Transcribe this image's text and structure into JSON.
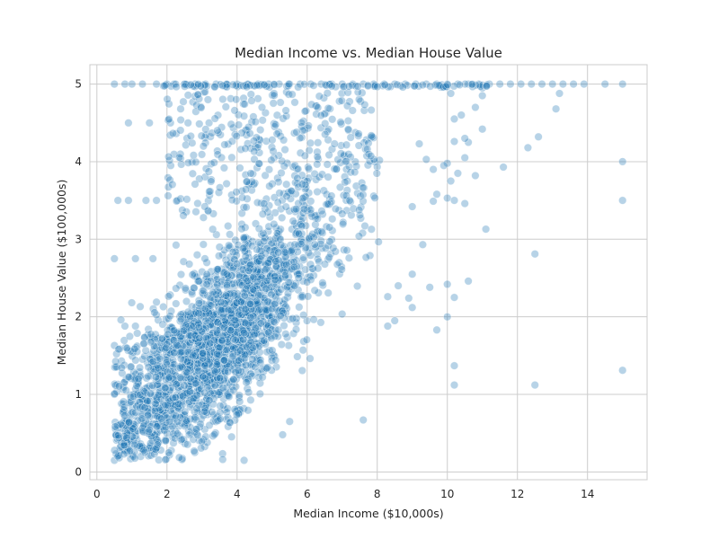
{
  "chart_data": {
    "type": "scatter",
    "title": "Median Income vs. Median House Value",
    "xlabel": "Median Income ($10,000s)",
    "ylabel": "Median House Value ($100,000s)",
    "xlim": [
      -0.2,
      15.7
    ],
    "ylim": [
      -0.1,
      5.25
    ],
    "xticks": [
      0,
      2,
      4,
      6,
      8,
      10,
      12,
      14
    ],
    "yticks": [
      0,
      1,
      2,
      3,
      4,
      5
    ],
    "grid": true,
    "point_color": "#1f77b4",
    "series": [
      {
        "points": [
          [
            0.5,
            5.0
          ],
          [
            0.8,
            5.0
          ],
          [
            1.0,
            5.0
          ],
          [
            1.3,
            5.0
          ],
          [
            1.7,
            5.0
          ],
          [
            2.0,
            5.0
          ],
          [
            2.2,
            5.0
          ],
          [
            2.5,
            5.0
          ],
          [
            2.8,
            5.0
          ],
          [
            3.1,
            5.0
          ],
          [
            3.4,
            5.0
          ],
          [
            3.7,
            5.0
          ],
          [
            4.0,
            5.0
          ],
          [
            4.3,
            5.0
          ],
          [
            4.6,
            5.0
          ],
          [
            4.9,
            5.0
          ],
          [
            5.2,
            5.0
          ],
          [
            5.5,
            5.0
          ],
          [
            5.8,
            5.0
          ],
          [
            6.1,
            5.0
          ],
          [
            6.4,
            5.0
          ],
          [
            6.7,
            5.0
          ],
          [
            7.0,
            5.0
          ],
          [
            7.3,
            5.0
          ],
          [
            7.6,
            5.0
          ],
          [
            7.9,
            5.0
          ],
          [
            8.2,
            5.0
          ],
          [
            8.5,
            5.0
          ],
          [
            8.8,
            5.0
          ],
          [
            9.1,
            5.0
          ],
          [
            9.4,
            5.0
          ],
          [
            9.7,
            5.0
          ],
          [
            10.0,
            5.0
          ],
          [
            10.3,
            5.0
          ],
          [
            10.6,
            5.0
          ],
          [
            10.9,
            5.0
          ],
          [
            11.2,
            5.0
          ],
          [
            11.5,
            5.0
          ],
          [
            11.8,
            5.0
          ],
          [
            12.1,
            5.0
          ],
          [
            12.4,
            5.0
          ],
          [
            12.7,
            5.0
          ],
          [
            13.0,
            5.0
          ],
          [
            13.3,
            5.0
          ],
          [
            13.6,
            5.0
          ],
          [
            13.9,
            5.0
          ],
          [
            14.5,
            5.0
          ],
          [
            15.0,
            5.0
          ],
          [
            0.9,
            4.5
          ],
          [
            1.5,
            4.5
          ],
          [
            2.1,
            4.5
          ],
          [
            2.6,
            4.5
          ],
          [
            3.2,
            4.5
          ],
          [
            0.6,
            3.5
          ],
          [
            0.9,
            3.5
          ],
          [
            1.4,
            3.5
          ],
          [
            1.7,
            3.5
          ],
          [
            2.3,
            3.5
          ],
          [
            0.5,
            2.75
          ],
          [
            1.1,
            2.75
          ],
          [
            1.6,
            2.75
          ],
          [
            0.5,
            1.63
          ],
          [
            0.8,
            1.88
          ],
          [
            1.1,
            1.88
          ],
          [
            0.6,
            1.13
          ],
          [
            0.5,
            1.0
          ],
          [
            0.7,
            0.88
          ],
          [
            11.0,
            4.95
          ],
          [
            11.0,
            4.85
          ],
          [
            10.8,
            4.7
          ],
          [
            10.1,
            4.88
          ],
          [
            10.2,
            4.55
          ],
          [
            10.4,
            4.6
          ],
          [
            10.6,
            4.25
          ],
          [
            10.2,
            4.26
          ],
          [
            10.5,
            4.3
          ],
          [
            11.0,
            4.42
          ],
          [
            10.5,
            4.05
          ],
          [
            10.0,
            3.98
          ],
          [
            10.3,
            3.85
          ],
          [
            10.1,
            3.75
          ],
          [
            10.8,
            3.82
          ],
          [
            10.0,
            3.53
          ],
          [
            10.2,
            3.5
          ],
          [
            10.5,
            3.46
          ],
          [
            11.1,
            3.13
          ],
          [
            9.2,
            4.23
          ],
          [
            9.4,
            4.03
          ],
          [
            9.6,
            3.9
          ],
          [
            9.9,
            3.95
          ],
          [
            9.7,
            3.58
          ],
          [
            9.6,
            3.49
          ],
          [
            9.0,
            3.42
          ],
          [
            9.3,
            2.93
          ],
          [
            9.0,
            2.55
          ],
          [
            8.6,
            2.4
          ],
          [
            8.3,
            2.26
          ],
          [
            8.9,
            2.24
          ],
          [
            9.5,
            2.38
          ],
          [
            9.0,
            2.12
          ],
          [
            8.5,
            1.95
          ],
          [
            8.3,
            1.88
          ],
          [
            9.7,
            1.83
          ],
          [
            10.0,
            2.0
          ],
          [
            10.0,
            2.42
          ],
          [
            10.2,
            2.25
          ],
          [
            10.6,
            2.46
          ],
          [
            10.2,
            1.37
          ],
          [
            10.2,
            1.12
          ],
          [
            12.3,
            4.18
          ],
          [
            12.6,
            4.32
          ],
          [
            13.1,
            4.68
          ],
          [
            13.2,
            4.88
          ],
          [
            11.6,
            3.93
          ],
          [
            12.5,
            2.81
          ],
          [
            12.5,
            1.12
          ],
          [
            15.0,
            4.0
          ],
          [
            15.0,
            3.5
          ],
          [
            15.0,
            1.31
          ],
          [
            7.6,
            0.67
          ],
          [
            5.3,
            0.48
          ],
          [
            4.2,
            0.15
          ],
          [
            0.5,
            0.15
          ],
          [
            5.5,
            0.65
          ]
        ]
      }
    ]
  }
}
